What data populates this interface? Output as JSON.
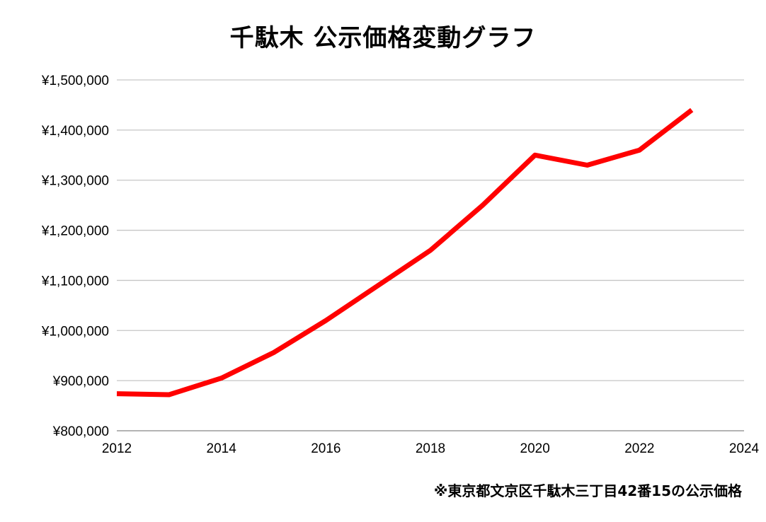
{
  "chart_data": {
    "type": "line",
    "title": "千駄木 公示価格変動グラフ",
    "xlabel": "",
    "ylabel": "",
    "x_ticks": [
      2012,
      2014,
      2016,
      2018,
      2020,
      2022,
      2024
    ],
    "x_tick_labels": [
      "2012",
      "2014",
      "2016",
      "2018",
      "2020",
      "2022",
      "2024"
    ],
    "y_ticks": [
      800000,
      900000,
      1000000,
      1100000,
      1200000,
      1300000,
      1400000,
      1500000
    ],
    "y_tick_labels": [
      "¥800,000",
      "¥900,000",
      "¥1,000,000",
      "¥1,100,000",
      "¥1,200,000",
      "¥1,300,000",
      "¥1,400,000",
      "¥1,500,000"
    ],
    "xlim": [
      2012,
      2024
    ],
    "ylim": [
      800000,
      1500000
    ],
    "grid": "horizontal",
    "legend": "none",
    "series": [
      {
        "color": "#ff0000",
        "x": [
          2012,
          2013,
          2014,
          2015,
          2016,
          2017,
          2018,
          2019,
          2020,
          2021,
          2022,
          2023
        ],
        "values": [
          874000,
          872000,
          905000,
          956000,
          1020000,
          1090000,
          1160000,
          1250000,
          1350000,
          1330000,
          1360000,
          1440000
        ]
      }
    ]
  },
  "footnote": "※東京都文京区千駄木三丁目42番15の公示価格",
  "colors": {
    "grid": "#c6c6c6",
    "axis": "#888888",
    "line": "#ff0000"
  }
}
